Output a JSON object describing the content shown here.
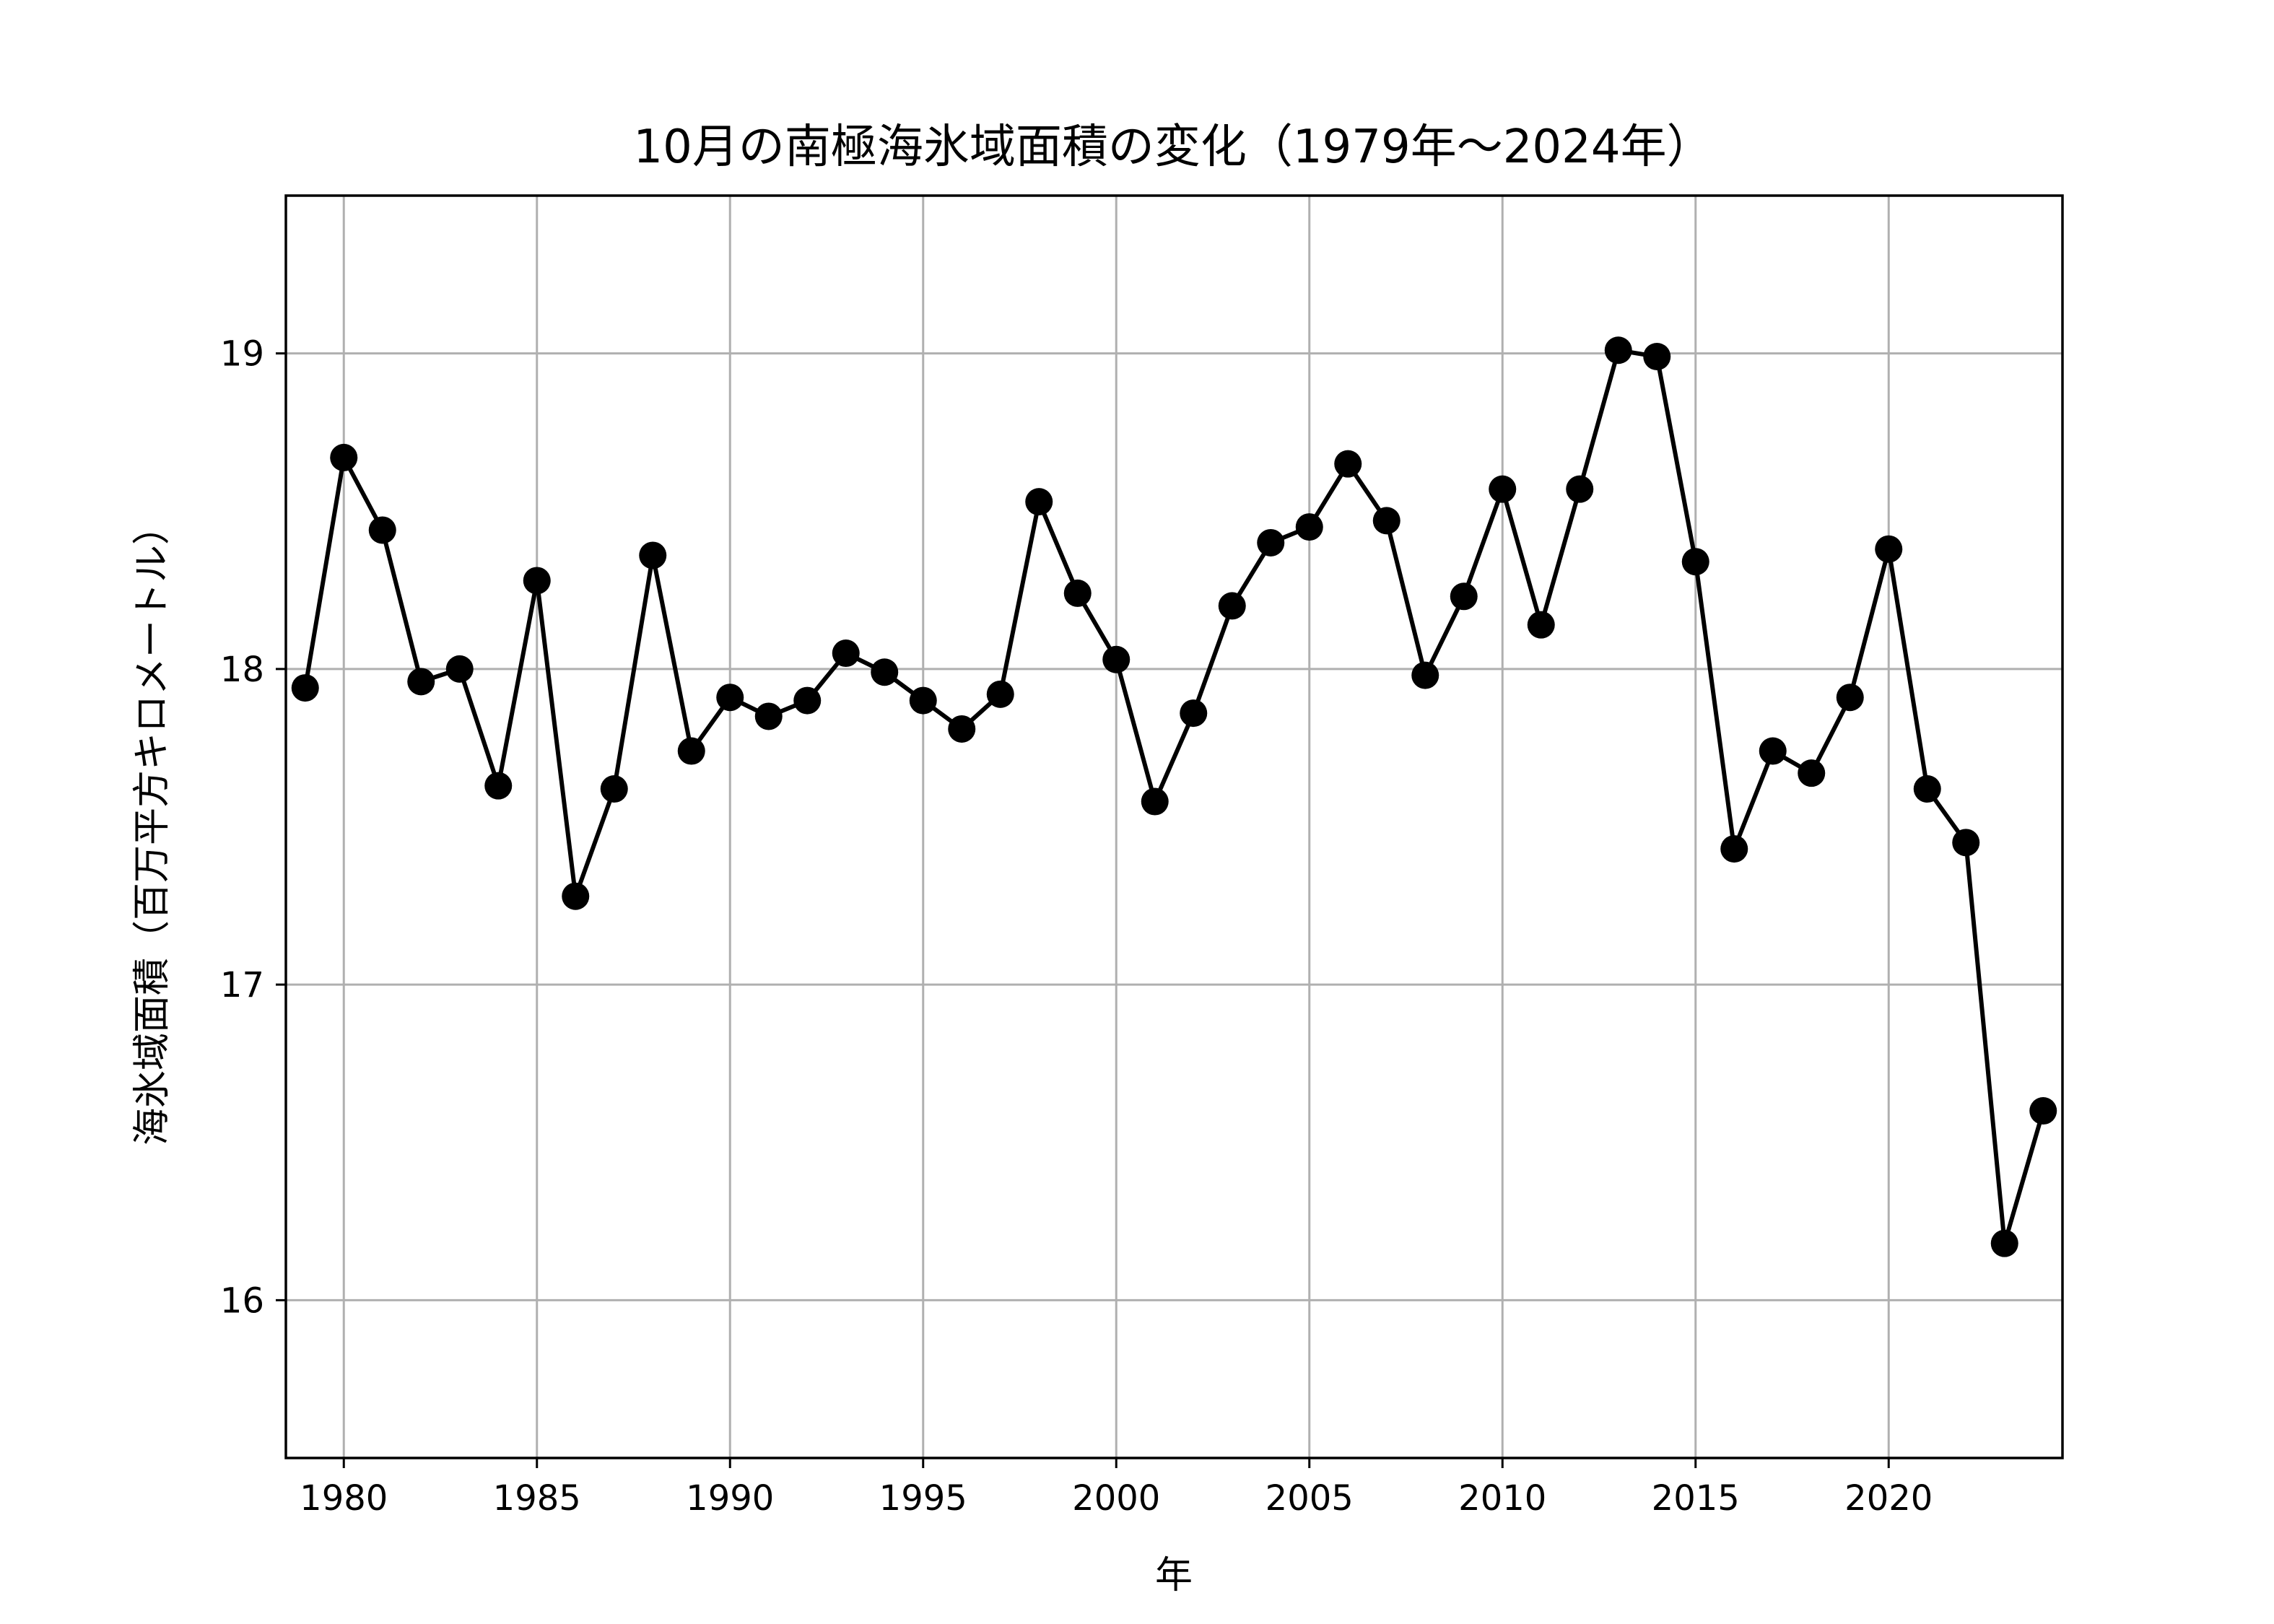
{
  "chart_data": {
    "type": "line",
    "title": "10月の南極海氷域面積の変化（1979年～2024年）",
    "xlabel": "年",
    "ylabel": "海氷域面積（百万平方キロメートル）",
    "xlim": [
      1978.5,
      2024.5
    ],
    "ylim": [
      15.5,
      19.5
    ],
    "xticks": [
      1980,
      1985,
      1990,
      1995,
      2000,
      2005,
      2010,
      2015,
      2020
    ],
    "yticks": [
      16,
      17,
      18,
      19
    ],
    "grid": true,
    "series": [
      {
        "color": "#000000",
        "marker": "circle",
        "x": [
          1979,
          1980,
          1981,
          1982,
          1983,
          1984,
          1985,
          1986,
          1987,
          1988,
          1989,
          1990,
          1991,
          1992,
          1993,
          1994,
          1995,
          1996,
          1997,
          1998,
          1999,
          2000,
          2001,
          2002,
          2003,
          2004,
          2005,
          2006,
          2007,
          2008,
          2009,
          2010,
          2011,
          2012,
          2013,
          2014,
          2015,
          2016,
          2017,
          2018,
          2019,
          2020,
          2021,
          2022,
          2023,
          2024
        ],
        "values": [
          17.94,
          18.67,
          18.44,
          17.96,
          18.0,
          17.63,
          18.28,
          17.28,
          17.62,
          18.36,
          17.74,
          17.91,
          17.85,
          17.9,
          18.05,
          17.99,
          17.9,
          17.81,
          17.92,
          18.53,
          18.24,
          18.03,
          17.58,
          17.86,
          18.2,
          18.4,
          18.45,
          18.65,
          18.47,
          17.98,
          18.23,
          18.57,
          18.14,
          18.57,
          19.01,
          18.99,
          18.34,
          17.43,
          17.74,
          17.67,
          17.91,
          18.38,
          17.62,
          17.45,
          16.18,
          16.6
        ]
      }
    ]
  }
}
